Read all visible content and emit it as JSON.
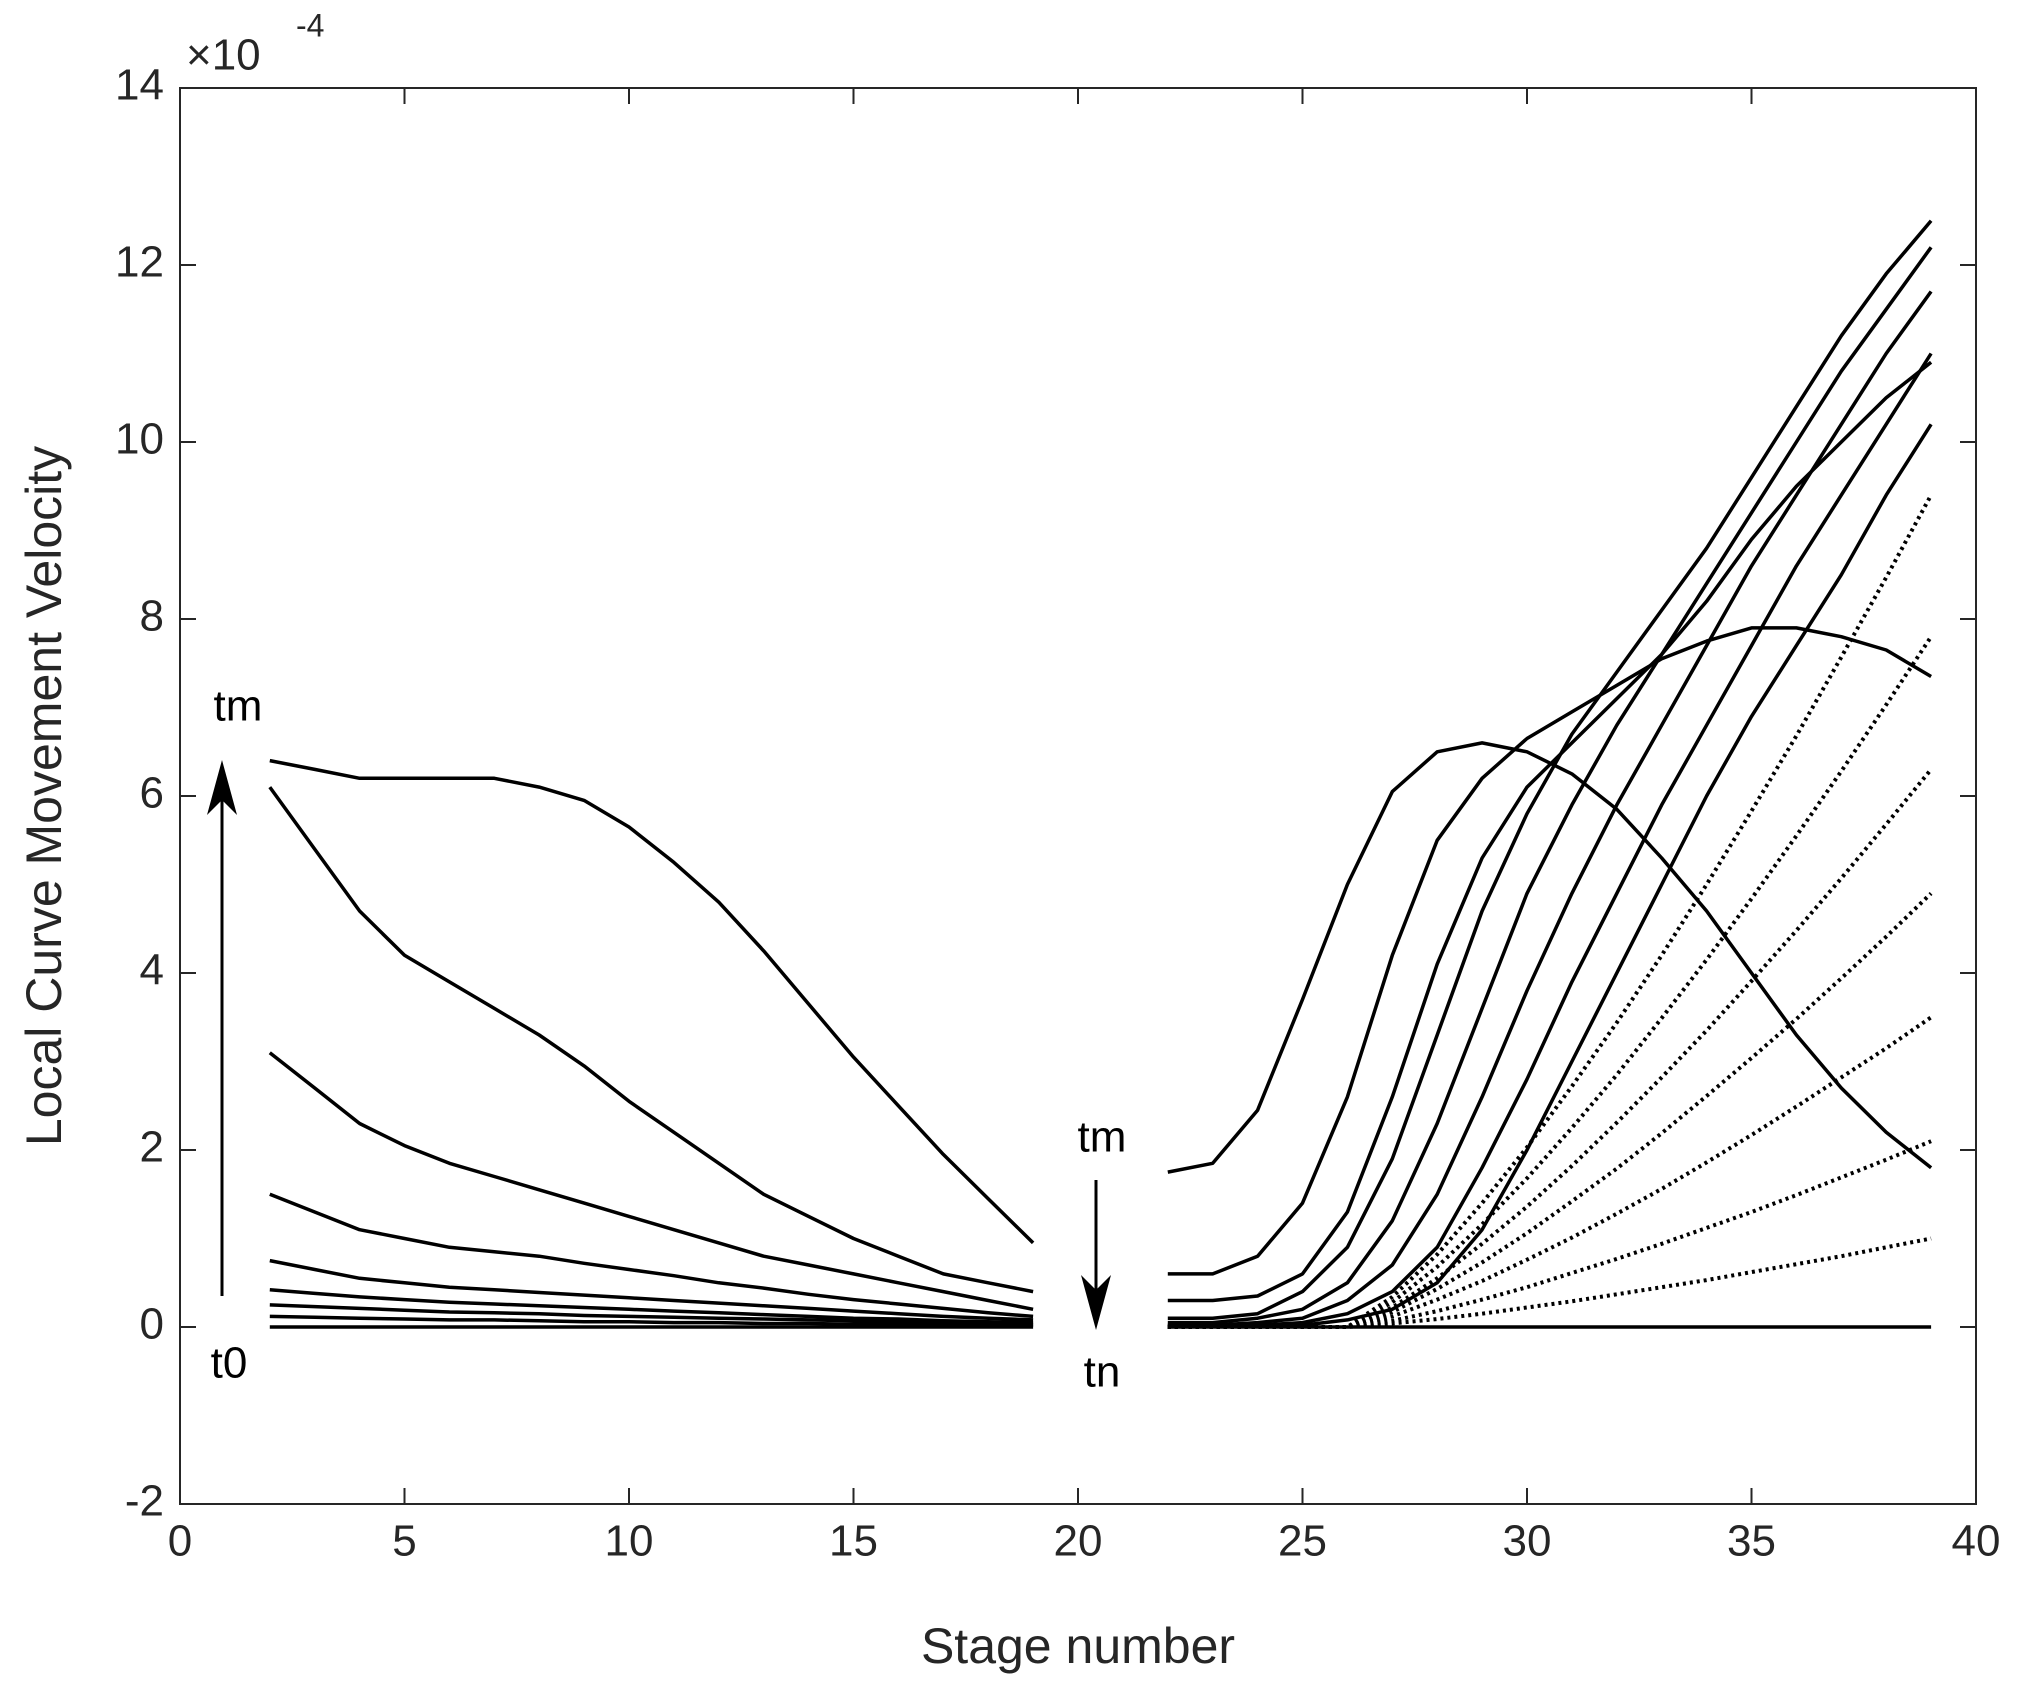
{
  "chart_data": {
    "type": "line",
    "xlabel": "Stage number",
    "ylabel": "Local Curve Movement Velocity",
    "axis_multiplier": {
      "base": "×10",
      "exponent": "-4"
    },
    "annotations": [
      "tm",
      "t0",
      "tm",
      "tn"
    ],
    "xlim": [
      0,
      40
    ],
    "xticks": [
      0,
      5,
      10,
      15,
      20,
      25,
      30,
      35,
      40
    ],
    "ylim": [
      -2,
      14
    ],
    "yticks": [
      -2,
      0,
      2,
      4,
      6,
      8,
      10,
      12,
      14
    ],
    "box": true,
    "x": [
      2,
      3,
      4,
      5,
      6,
      7,
      8,
      9,
      10,
      11,
      12,
      13,
      14,
      15,
      16,
      17,
      18,
      19,
      20,
      21,
      22,
      23,
      24,
      25,
      26,
      27,
      28,
      29,
      30,
      31,
      32,
      33,
      34,
      35,
      36,
      37,
      38,
      39
    ],
    "series": [
      {
        "color": "#000000",
        "style": "solid",
        "values": [
          6.4,
          6.3,
          6.2,
          6.2,
          6.2,
          6.2,
          6.1,
          5.95,
          5.65,
          5.25,
          4.8,
          4.25,
          3.65,
          3.05,
          2.5,
          1.95,
          1.45,
          0.95,
          null,
          null,
          1.75,
          1.85,
          2.45,
          3.7,
          5.0,
          6.05,
          6.5,
          6.6,
          6.5,
          6.25,
          5.85,
          5.3,
          4.7,
          4.0,
          3.3,
          2.7,
          2.2,
          1.8
        ]
      },
      {
        "color": "#000000",
        "style": "solid",
        "values": [
          6.1,
          5.4,
          4.7,
          4.2,
          3.9,
          3.6,
          3.3,
          2.95,
          2.55,
          2.2,
          1.85,
          1.5,
          1.25,
          1.0,
          0.8,
          0.6,
          0.5,
          0.4,
          null,
          null,
          0.6,
          0.6,
          0.8,
          1.4,
          2.6,
          4.2,
          5.5,
          6.2,
          6.65,
          6.95,
          7.25,
          7.55,
          7.75,
          7.9,
          7.9,
          7.8,
          7.65,
          7.35
        ]
      },
      {
        "color": "#000000",
        "style": "solid",
        "values": [
          3.1,
          2.7,
          2.3,
          2.05,
          1.85,
          1.7,
          1.55,
          1.4,
          1.25,
          1.1,
          0.95,
          0.8,
          0.7,
          0.6,
          0.5,
          0.4,
          0.3,
          0.2,
          null,
          null,
          0.3,
          0.3,
          0.35,
          0.6,
          1.3,
          2.6,
          4.1,
          5.3,
          6.1,
          6.6,
          7.1,
          7.6,
          8.2,
          8.9,
          9.5,
          10.0,
          10.5,
          10.9
        ]
      },
      {
        "color": "#000000",
        "style": "solid",
        "values": [
          1.5,
          1.3,
          1.1,
          1.0,
          0.9,
          0.85,
          0.8,
          0.72,
          0.65,
          0.58,
          0.5,
          0.44,
          0.37,
          0.31,
          0.26,
          0.21,
          0.16,
          0.12,
          null,
          null,
          0.1,
          0.1,
          0.15,
          0.4,
          0.9,
          1.9,
          3.3,
          4.7,
          5.8,
          6.7,
          7.4,
          8.1,
          8.8,
          9.6,
          10.4,
          11.2,
          11.9,
          12.5
        ]
      },
      {
        "color": "#000000",
        "style": "solid",
        "values": [
          0.75,
          0.65,
          0.55,
          0.5,
          0.45,
          0.42,
          0.39,
          0.36,
          0.33,
          0.3,
          0.27,
          0.24,
          0.21,
          0.18,
          0.15,
          0.12,
          0.1,
          0.08,
          null,
          null,
          0.05,
          0.05,
          0.1,
          0.2,
          0.5,
          1.2,
          2.3,
          3.6,
          4.9,
          5.9,
          6.8,
          7.6,
          8.4,
          9.2,
          10.0,
          10.8,
          11.5,
          12.2
        ]
      },
      {
        "color": "#000000",
        "style": "solid",
        "values": [
          0.42,
          0.38,
          0.34,
          0.31,
          0.28,
          0.26,
          0.24,
          0.22,
          0.2,
          0.18,
          0.16,
          0.14,
          0.12,
          0.1,
          0.09,
          0.07,
          0.06,
          0.05,
          null,
          null,
          0.02,
          0.02,
          0.05,
          0.1,
          0.3,
          0.7,
          1.5,
          2.6,
          3.8,
          4.9,
          5.9,
          6.8,
          7.7,
          8.6,
          9.4,
          10.2,
          11.0,
          11.7
        ]
      },
      {
        "color": "#000000",
        "style": "solid",
        "values": [
          0.25,
          0.23,
          0.21,
          0.19,
          0.17,
          0.16,
          0.15,
          0.13,
          0.12,
          0.11,
          0.1,
          0.09,
          0.08,
          0.07,
          0.06,
          0.05,
          0.04,
          0.03,
          null,
          null,
          0.01,
          0.01,
          0.02,
          0.05,
          0.15,
          0.4,
          0.9,
          1.8,
          2.8,
          3.9,
          4.9,
          5.9,
          6.8,
          7.7,
          8.6,
          9.4,
          10.2,
          11.0
        ]
      },
      {
        "color": "#000000",
        "style": "solid",
        "values": [
          0.12,
          0.11,
          0.1,
          0.09,
          0.08,
          0.08,
          0.07,
          0.06,
          0.06,
          0.05,
          0.05,
          0.04,
          0.04,
          0.03,
          0.03,
          0.02,
          0.02,
          0.02,
          null,
          null,
          0.01,
          0.01,
          0.01,
          0.02,
          0.08,
          0.2,
          0.5,
          1.1,
          2.0,
          3.0,
          4.0,
          5.0,
          6.0,
          6.9,
          7.7,
          8.5,
          9.4,
          10.2
        ]
      },
      {
        "color": "#000000",
        "style": "solid",
        "values": [
          0,
          0,
          0,
          0,
          0,
          0,
          0,
          0,
          0,
          0,
          0,
          0,
          0,
          0,
          0,
          0,
          0,
          0,
          null,
          null,
          0,
          0,
          0,
          0,
          0,
          0,
          0,
          0,
          0,
          0,
          0,
          0,
          0,
          0,
          0,
          0,
          0,
          0
        ]
      },
      {
        "color": "#000000",
        "style": "dotted",
        "values": [
          null,
          null,
          null,
          null,
          null,
          null,
          null,
          null,
          null,
          null,
          null,
          null,
          null,
          null,
          null,
          null,
          null,
          null,
          null,
          null,
          0,
          0,
          0,
          0,
          0,
          0.34,
          0.82,
          1.4,
          2.03,
          2.72,
          3.44,
          4.2,
          5.0,
          5.83,
          6.68,
          7.57,
          8.47,
          9.4
        ]
      },
      {
        "color": "#000000",
        "style": "dotted",
        "values": [
          null,
          null,
          null,
          null,
          null,
          null,
          null,
          null,
          null,
          null,
          null,
          null,
          null,
          null,
          null,
          null,
          null,
          null,
          null,
          null,
          0,
          0,
          0,
          0,
          0,
          0.28,
          0.68,
          1.16,
          1.68,
          2.25,
          2.85,
          3.49,
          4.15,
          4.84,
          5.55,
          6.28,
          7.03,
          7.8
        ]
      },
      {
        "color": "#000000",
        "style": "dotted",
        "values": [
          null,
          null,
          null,
          null,
          null,
          null,
          null,
          null,
          null,
          null,
          null,
          null,
          null,
          null,
          null,
          null,
          null,
          null,
          null,
          null,
          0,
          0,
          0,
          0,
          0,
          0.22,
          0.55,
          0.94,
          1.36,
          1.82,
          2.31,
          2.82,
          3.35,
          3.91,
          4.48,
          5.07,
          5.68,
          6.3
        ]
      },
      {
        "color": "#000000",
        "style": "dotted",
        "values": [
          null,
          null,
          null,
          null,
          null,
          null,
          null,
          null,
          null,
          null,
          null,
          null,
          null,
          null,
          null,
          null,
          null,
          null,
          null,
          null,
          0,
          0,
          0,
          0,
          0,
          0.17,
          0.43,
          0.73,
          1.06,
          1.42,
          1.79,
          2.19,
          2.61,
          3.04,
          3.48,
          3.94,
          4.41,
          4.9
        ]
      },
      {
        "color": "#000000",
        "style": "dotted",
        "values": [
          null,
          null,
          null,
          null,
          null,
          null,
          null,
          null,
          null,
          null,
          null,
          null,
          null,
          null,
          null,
          null,
          null,
          null,
          null,
          null,
          0,
          0,
          0,
          0,
          0,
          0.12,
          0.31,
          0.52,
          0.76,
          1.01,
          1.28,
          1.56,
          1.86,
          2.17,
          2.49,
          2.82,
          3.15,
          3.5
        ]
      },
      {
        "color": "#000000",
        "style": "dotted",
        "values": [
          null,
          null,
          null,
          null,
          null,
          null,
          null,
          null,
          null,
          null,
          null,
          null,
          null,
          null,
          null,
          null,
          null,
          null,
          null,
          null,
          0,
          0,
          0,
          0,
          0,
          0.07,
          0.18,
          0.31,
          0.45,
          0.61,
          0.77,
          0.94,
          1.12,
          1.3,
          1.49,
          1.69,
          1.89,
          2.1
        ]
      },
      {
        "color": "#000000",
        "style": "dotted",
        "values": [
          null,
          null,
          null,
          null,
          null,
          null,
          null,
          null,
          null,
          null,
          null,
          null,
          null,
          null,
          null,
          null,
          null,
          null,
          null,
          null,
          0,
          0,
          0,
          0,
          0,
          0.04,
          0.09,
          0.15,
          0.22,
          0.29,
          0.37,
          0.45,
          0.53,
          0.62,
          0.71,
          0.8,
          0.9,
          1.0
        ]
      }
    ]
  }
}
